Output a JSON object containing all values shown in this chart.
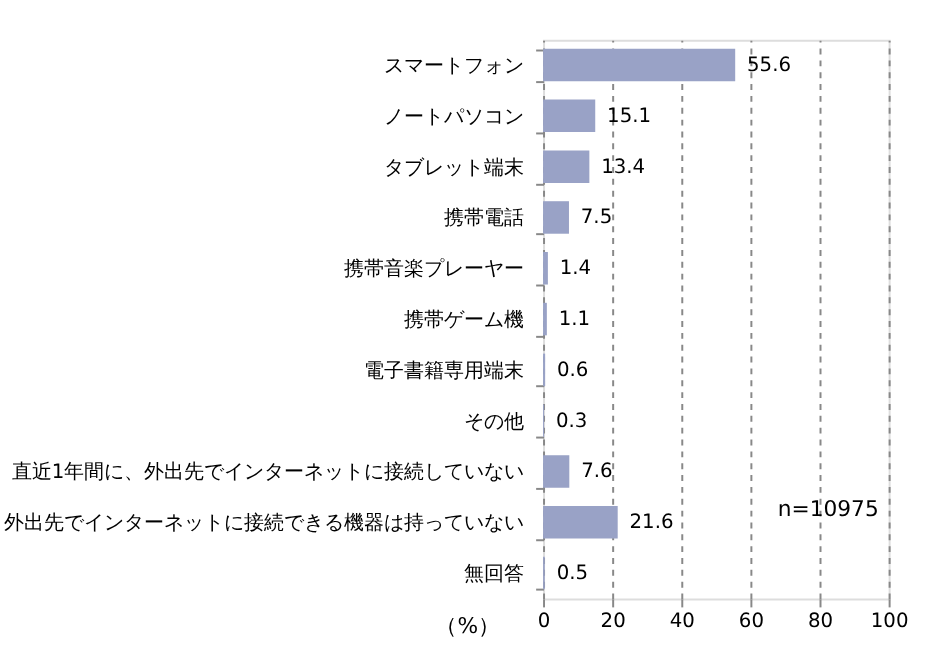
{
  "chart_data": {
    "type": "bar",
    "orientation": "horizontal",
    "xlabel": "（%）",
    "categories": [
      "スマートフォン",
      "ノートパソコン",
      "タブレット端末",
      "携帯電話",
      "携帯音楽プレーヤー",
      "携帯ゲーム機",
      "電子書籍専用端末",
      "その他",
      "直近1年間に、外出先でインターネットに接続していない",
      "外出先でインターネットに接続できる機器は持っていない",
      "無回答"
    ],
    "values": [
      55.6,
      15.1,
      13.4,
      7.5,
      1.4,
      1.1,
      0.6,
      0.3,
      7.6,
      21.6,
      0.5
    ],
    "color": "#99a2c6",
    "data_labels": true,
    "xlim": [
      0,
      100
    ],
    "xticks": [
      0,
      20,
      40,
      60,
      80,
      100
    ],
    "grid": "x",
    "annotations": [
      "n=10975"
    ]
  }
}
